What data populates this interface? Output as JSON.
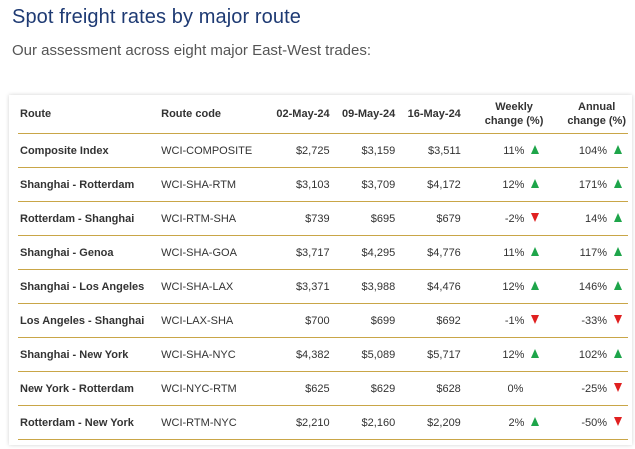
{
  "header": {
    "title": "Spot freight rates by major route",
    "subtitle": "Our assessment across eight major East-West trades:"
  },
  "table": {
    "columns": {
      "route": "Route",
      "code": "Route code",
      "d1": "02-May-24",
      "d2": "09-May-24",
      "d3": "16-May-24",
      "weekly_l1": "Weekly",
      "weekly_l2": "change (%)",
      "annual_l1": "Annual",
      "annual_l2": "change (%)"
    },
    "colors": {
      "up": "#1ea54a",
      "down": "#e02020",
      "rule": "#c9a648",
      "title": "#1e3a73"
    },
    "rows": [
      {
        "route": "Composite Index",
        "code": "WCI-COMPOSITE",
        "d1": "$2,725",
        "d2": "$3,159",
        "d3": "$3,511",
        "weekly": "11%",
        "weekly_dir": "up",
        "annual": "104%",
        "annual_dir": "up"
      },
      {
        "route": "Shanghai - Rotterdam",
        "code": "WCI-SHA-RTM",
        "d1": "$3,103",
        "d2": "$3,709",
        "d3": "$4,172",
        "weekly": "12%",
        "weekly_dir": "up",
        "annual": "171%",
        "annual_dir": "up"
      },
      {
        "route": "Rotterdam - Shanghai",
        "code": "WCI-RTM-SHA",
        "d1": "$739",
        "d2": "$695",
        "d3": "$679",
        "weekly": "-2%",
        "weekly_dir": "down",
        "annual": "14%",
        "annual_dir": "up"
      },
      {
        "route": "Shanghai - Genoa",
        "code": "WCI-SHA-GOA",
        "d1": "$3,717",
        "d2": "$4,295",
        "d3": "$4,776",
        "weekly": "11%",
        "weekly_dir": "up",
        "annual": "117%",
        "annual_dir": "up"
      },
      {
        "route": "Shanghai - Los Angeles",
        "code": "WCI-SHA-LAX",
        "d1": "$3,371",
        "d2": "$3,988",
        "d3": "$4,476",
        "weekly": "12%",
        "weekly_dir": "up",
        "annual": "146%",
        "annual_dir": "up"
      },
      {
        "route": "Los Angeles - Shanghai",
        "code": "WCI-LAX-SHA",
        "d1": "$700",
        "d2": "$699",
        "d3": "$692",
        "weekly": "-1%",
        "weekly_dir": "down",
        "annual": "-33%",
        "annual_dir": "down"
      },
      {
        "route": "Shanghai - New York",
        "code": "WCI-SHA-NYC",
        "d1": "$4,382",
        "d2": "$5,089",
        "d3": "$5,717",
        "weekly": "12%",
        "weekly_dir": "up",
        "annual": "102%",
        "annual_dir": "up"
      },
      {
        "route": "New York - Rotterdam",
        "code": "WCI-NYC-RTM",
        "d1": "$625",
        "d2": "$629",
        "d3": "$628",
        "weekly": "0%",
        "weekly_dir": "none",
        "annual": "-25%",
        "annual_dir": "down"
      },
      {
        "route": "Rotterdam - New York",
        "code": "WCI-RTM-NYC",
        "d1": "$2,210",
        "d2": "$2,160",
        "d3": "$2,209",
        "weekly": "2%",
        "weekly_dir": "up",
        "annual": "-50%",
        "annual_dir": "down"
      }
    ]
  }
}
